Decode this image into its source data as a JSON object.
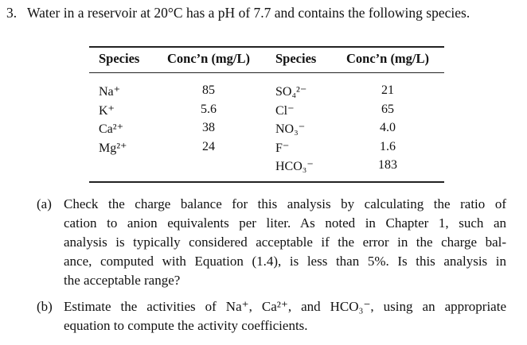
{
  "problem": {
    "number": "3.",
    "text": "Water in a reservoir at 20°C has a pH of 7.7 and contains the following species."
  },
  "table": {
    "headers": [
      "Species",
      "Conc’n (mg/L)",
      "Species",
      "Conc’n (mg/L)"
    ],
    "cations": [
      [
        "Na⁺",
        "85"
      ],
      [
        "K⁺",
        "5.6"
      ],
      [
        "Ca²⁺",
        "38"
      ],
      [
        "Mg²⁺",
        "24"
      ]
    ],
    "anions": [
      [
        "SO₄²⁻",
        "21"
      ],
      [
        "Cl⁻",
        "65"
      ],
      [
        "NO₃⁻",
        "4.0"
      ],
      [
        "F⁻",
        "1.6"
      ],
      [
        "HCO₃⁻",
        "183"
      ]
    ]
  },
  "parts": [
    {
      "label": "(a)",
      "lines": [
        "Check the charge balance for this analysis by calculating the ratio of",
        "cation to anion equivalents per liter.  As noted in Chapter 1, such an",
        "analysis is typically considered acceptable if the error in the charge bal-",
        "ance, computed with Equation (1.4), is less than 5%.  Is this analysis in",
        "the acceptable range?"
      ]
    },
    {
      "label": "(b)",
      "lines": [
        "Estimate the activities of Na⁺, Ca²⁺, and HCO₃⁻, using an appropriate",
        "equation to compute the activity coefficients."
      ]
    }
  ]
}
